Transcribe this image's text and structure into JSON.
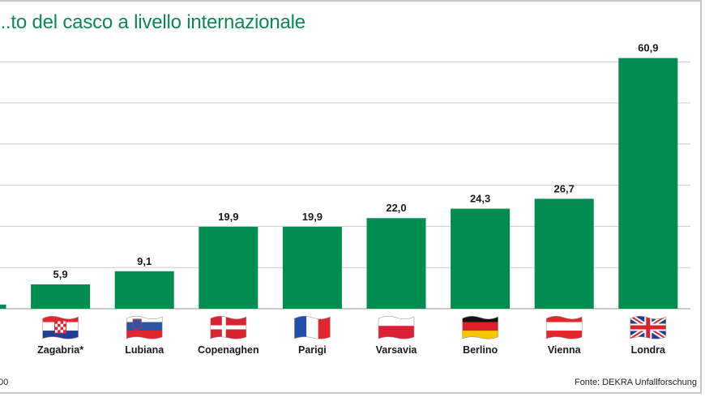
{
  "chart_data": {
    "type": "bar",
    "title": "...to del casco a livello internazionale",
    "categories": [
      "",
      "Zagabria*",
      "Lubiana",
      "Copenaghen",
      "Parigi",
      "Varsavia",
      "Berlino",
      "Vienna",
      "Londra"
    ],
    "values": [
      1.0,
      5.9,
      9.1,
      19.9,
      19.9,
      22.0,
      24.3,
      26.7,
      60.9
    ],
    "value_labels": [
      "",
      "5,9",
      "9,1",
      "19,9",
      "19,9",
      "22,0",
      "24,3",
      "26,7",
      "60,9"
    ],
    "flags": [
      "",
      "croatia-flag",
      "slovenia-flag",
      "denmark-flag",
      "france-flag",
      "poland-flag",
      "germany-flag",
      "austria-flag",
      "uk-flag"
    ],
    "ylim": [
      0,
      60
    ],
    "grid": true,
    "bar_color": "#008d4f",
    "grid_color": "#cccccc"
  },
  "source": "Fonte: DEKRA Unfallforschung",
  "left_note": "00"
}
